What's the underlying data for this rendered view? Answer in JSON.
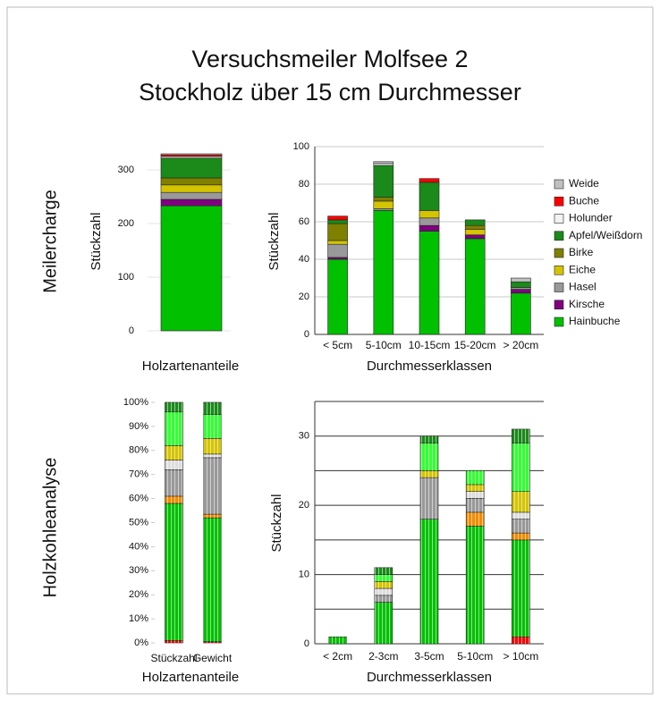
{
  "page": {
    "title_lines": [
      "Versuchsmeiler Molfsee 2",
      "Stockholz über 15 cm Durchmesser"
    ],
    "row_labels": [
      "Meilercharge",
      "Holzkohleanalyse"
    ]
  },
  "chart_data": [
    {
      "type": "bar",
      "stacked": true,
      "ylabel": "Stückzahl",
      "xlabel": "Holzartenanteile",
      "ylim": [
        0,
        340
      ],
      "yticks": [
        0,
        100,
        200,
        300
      ],
      "grid": true,
      "series": [
        {
          "color": "#00c000",
          "values": [
            233
          ]
        },
        {
          "color": "#800080",
          "values": [
            12
          ]
        },
        {
          "color": "#999999",
          "values": [
            13
          ]
        },
        {
          "color": "#d4c400",
          "values": [
            14
          ]
        },
        {
          "color": "#808000",
          "values": [
            13
          ]
        },
        {
          "color": "#1a8a1a",
          "values": [
            37
          ]
        },
        {
          "color": "#f2f2f2",
          "values": [
            3
          ]
        },
        {
          "color": "#ff0000",
          "values": [
            3
          ]
        },
        {
          "color": "#c0c0c0",
          "values": [
            2
          ]
        }
      ]
    },
    {
      "type": "bar",
      "stacked": true,
      "ylabel": "Stückzahl",
      "xlabel": "Durchmesserklassen",
      "categories": [
        "< 5cm",
        "5-10cm",
        "10-15cm",
        "15-20cm",
        "> 20cm"
      ],
      "ylim": [
        0,
        100
      ],
      "yticks": [
        0,
        20,
        40,
        60,
        80,
        100
      ],
      "grid": true,
      "legend": "right",
      "series": [
        {
          "name": "Hainbuche",
          "color": "#00c000",
          "values": [
            40,
            66,
            55,
            51,
            22
          ]
        },
        {
          "name": "Kirsche",
          "color": "#800080",
          "values": [
            1,
            0,
            3,
            2,
            2
          ]
        },
        {
          "name": "Hasel",
          "color": "#999999",
          "values": [
            7,
            1,
            4,
            0,
            1
          ]
        },
        {
          "name": "Eiche",
          "color": "#d4c400",
          "values": [
            2,
            4,
            4,
            3,
            0
          ]
        },
        {
          "name": "Birke",
          "color": "#808000",
          "values": [
            9,
            2,
            0,
            2,
            0
          ]
        },
        {
          "name": "Apfel/Weißdorn",
          "color": "#1a8a1a",
          "values": [
            2,
            17,
            15,
            3,
            3
          ]
        },
        {
          "name": "Holunder",
          "color": "#f2f2f2",
          "values": [
            0,
            1,
            0,
            0,
            0
          ]
        },
        {
          "name": "Buche",
          "color": "#ff0000",
          "values": [
            2,
            0,
            2,
            0,
            0
          ]
        },
        {
          "name": "Weide",
          "color": "#c0c0c0",
          "values": [
            0,
            1,
            0,
            0,
            2
          ]
        }
      ]
    },
    {
      "type": "bar",
      "stacked": true,
      "xlabel": "Holzartenanteile",
      "bar_pattern": "vertical-stripes",
      "categories": [
        "Stückzahl",
        "Gewicht"
      ],
      "ylim": [
        0,
        100
      ],
      "yticks": [
        {
          "value": 0,
          "label": "0%"
        },
        {
          "value": 10,
          "label": "10%"
        },
        {
          "value": 20,
          "label": "20%"
        },
        {
          "value": 30,
          "label": "30%"
        },
        {
          "value": 40,
          "label": "40%"
        },
        {
          "value": 50,
          "label": "50%"
        },
        {
          "value": 60,
          "label": "60%"
        },
        {
          "value": 70,
          "label": "70%"
        },
        {
          "value": 80,
          "label": "80%"
        },
        {
          "value": 90,
          "label": "90%"
        },
        {
          "value": 100,
          "label": "100%"
        }
      ],
      "series": [
        {
          "color": "#ff0000",
          "values": [
            1,
            0.5
          ]
        },
        {
          "color": "#00c000",
          "values": [
            57,
            51.5
          ]
        },
        {
          "color": "#f08c00",
          "values": [
            3,
            1.5
          ]
        },
        {
          "color": "#999999",
          "values": [
            11,
            23.5
          ]
        },
        {
          "color": "#dddddd",
          "values": [
            4,
            1.5
          ]
        },
        {
          "color": "#d4c400",
          "values": [
            6,
            6.5
          ]
        },
        {
          "color": "#33ff33",
          "values": [
            14,
            10
          ]
        },
        {
          "color": "#1a8a1a",
          "values": [
            4,
            5
          ]
        }
      ]
    },
    {
      "type": "bar",
      "stacked": true,
      "ylabel": "Stückzahl",
      "xlabel": "Durchmesserklassen",
      "bar_pattern": "vertical-stripes",
      "categories": [
        "< 2cm",
        "2-3cm",
        "3-5cm",
        "5-10cm",
        "> 10cm"
      ],
      "ylim": [
        0,
        35
      ],
      "yticks": [
        0,
        10,
        20,
        30
      ],
      "minor_yticks": [
        5,
        15,
        25,
        35
      ],
      "grid": true,
      "series": [
        {
          "color": "#ff0000",
          "values": [
            0,
            0,
            0,
            0,
            1
          ]
        },
        {
          "color": "#00c000",
          "values": [
            1,
            6,
            18,
            17,
            14
          ]
        },
        {
          "color": "#f08c00",
          "values": [
            0,
            0,
            0,
            2,
            1
          ]
        },
        {
          "color": "#999999",
          "values": [
            0,
            1,
            6,
            2,
            2
          ]
        },
        {
          "color": "#dddddd",
          "values": [
            0,
            1,
            0,
            1,
            1
          ]
        },
        {
          "color": "#d4c400",
          "values": [
            0,
            1,
            1,
            1,
            3
          ]
        },
        {
          "color": "#33ff33",
          "values": [
            0,
            1,
            4,
            2,
            7
          ]
        },
        {
          "color": "#1a8a1a",
          "values": [
            0,
            1,
            1,
            0,
            2
          ]
        }
      ]
    }
  ]
}
